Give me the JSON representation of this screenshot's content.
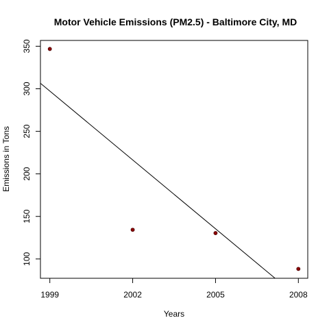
{
  "chart_data": {
    "type": "scatter",
    "title": "Motor Vehicle Emissions (PM2.5) - Baltimore City, MD",
    "xlabel": "Years",
    "ylabel": "Emissions in Tons",
    "x_ticks": [
      "1999",
      "2002",
      "2005",
      "2008"
    ],
    "y_ticks": [
      "100",
      "150",
      "200",
      "250",
      "300",
      "350"
    ],
    "xlim": [
      1998.66,
      2008.34
    ],
    "ylim": [
      77.3,
      356.8
    ],
    "points": [
      {
        "x": 1999,
        "y": 346.8
      },
      {
        "x": 2002,
        "y": 134.3
      },
      {
        "x": 2005,
        "y": 130.4
      },
      {
        "x": 2008,
        "y": 88.3
      }
    ],
    "trend_line": {
      "intercept_at_1999": 297.3,
      "slope_per_year": -26.97
    },
    "point_color": "#8b0000",
    "line_color": "#000000",
    "grid": false,
    "legend": "none"
  }
}
